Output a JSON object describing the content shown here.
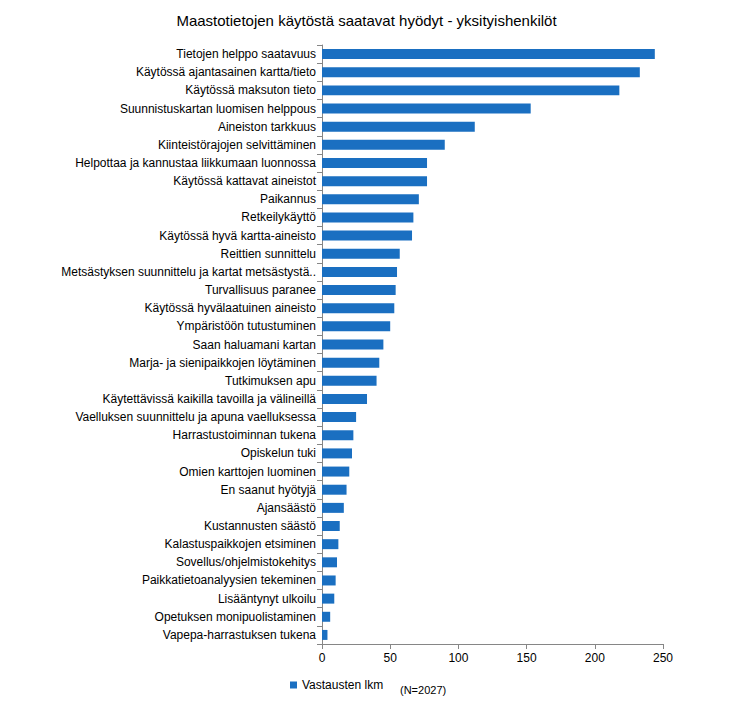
{
  "chart_data": {
    "type": "bar",
    "orientation": "horizontal",
    "title": "Maastotietojen käytöstä saatavat hyödyt - yksityishenkilöt",
    "annotations": [
      "(N=2027)"
    ],
    "categories": [
      "Tietojen helppo saatavuus",
      "Käytössä ajantasainen kartta/tieto",
      "Käytössä maksuton tieto",
      "Suunnistuskartan luomisen helppous",
      "Aineiston tarkkuus",
      "Kiinteistörajojen selvittäminen",
      "Helpottaa ja kannustaa liikkumaan luonnossa",
      "Käytössä kattavat aineistot",
      "Paikannus",
      "Retkeilykäyttö",
      "Käytössä hyvä kartta-aineisto",
      "Reittien sunnittelu",
      "Metsästyksen suunnittelu ja kartat metsästystä..",
      "Turvallisuus paranee",
      "Käytössä hyvälaatuinen aineisto",
      "Ympäristöön tutustuminen",
      "Saan haluamani kartan",
      "Marja- ja sienipaikkojen löytäminen",
      "Tutkimuksen apu",
      "Käytettävissä kaikilla tavoilla ja välineillä",
      "Vaelluksen suunnittelu ja apuna vaelluksessa",
      "Harrastustoiminnan tukena",
      "Opiskelun tuki",
      "Omien karttojen luominen",
      "En saanut hyötyjä",
      "Ajansäästö",
      "Kustannusten säästö",
      "Kalastuspaikkojen etsiminen",
      "Sovellus/ohjelmistokehitys",
      "Paikkatietoanalyysien tekeminen",
      "Lisääntynyt ulkoilu",
      "Opetuksen monipuolistaminen",
      "Vapepa-harrastuksen tukena"
    ],
    "series": [
      {
        "name": "Vastausten lkm",
        "color": "#1a6fc1",
        "values": [
          244,
          233,
          218,
          153,
          112,
          90,
          77,
          77,
          71,
          67,
          66,
          57,
          55,
          54,
          53,
          50,
          45,
          42,
          40,
          33,
          25,
          23,
          22,
          20,
          18,
          16,
          13,
          12,
          11,
          10,
          9,
          6,
          4
        ]
      }
    ],
    "xlim": [
      0,
      250
    ],
    "xticks": [
      0,
      50,
      100,
      150,
      200,
      250
    ],
    "grid": false,
    "legend": "bottom"
  }
}
